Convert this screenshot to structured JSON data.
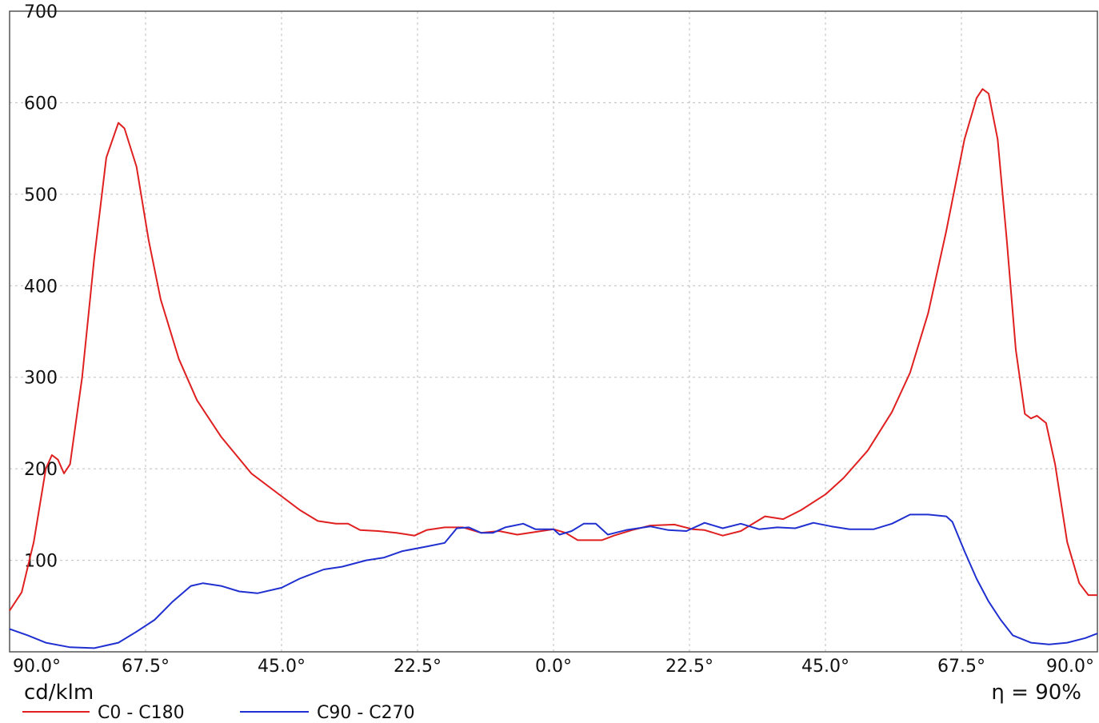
{
  "chart_data": {
    "type": "line",
    "unit_label": "cd/klm",
    "efficiency_label": "η = 90%",
    "ylim": [
      0,
      700
    ],
    "yticks": [
      100,
      200,
      300,
      400,
      500,
      600,
      700
    ],
    "xlim": [
      -90,
      90
    ],
    "xticks": [
      {
        "value": -90,
        "label": "90.0°"
      },
      {
        "value": -67.5,
        "label": "67.5°"
      },
      {
        "value": -45,
        "label": "45.0°"
      },
      {
        "value": -22.5,
        "label": "22.5°"
      },
      {
        "value": 0,
        "label": "0.0°"
      },
      {
        "value": 22.5,
        "label": "22.5°"
      },
      {
        "value": 45,
        "label": "45.0°"
      },
      {
        "value": 67.5,
        "label": "67.5°"
      },
      {
        "value": 90,
        "label": "90.0°"
      }
    ],
    "grid": true,
    "legend_position": "bottom-left",
    "series": [
      {
        "name": "C0 - C180",
        "color": "#e02020",
        "points": [
          [
            -90,
            45
          ],
          [
            -88,
            65
          ],
          [
            -86,
            120
          ],
          [
            -84,
            200
          ],
          [
            -83,
            215
          ],
          [
            -82,
            210
          ],
          [
            -81,
            195
          ],
          [
            -80,
            205
          ],
          [
            -78,
            300
          ],
          [
            -76,
            430
          ],
          [
            -74,
            540
          ],
          [
            -72,
            578
          ],
          [
            -71,
            572
          ],
          [
            -69,
            530
          ],
          [
            -67,
            450
          ],
          [
            -65,
            385
          ],
          [
            -62,
            320
          ],
          [
            -59,
            275
          ],
          [
            -55,
            235
          ],
          [
            -50,
            195
          ],
          [
            -45,
            170
          ],
          [
            -42,
            155
          ],
          [
            -39,
            143
          ],
          [
            -36,
            140
          ],
          [
            -34,
            140
          ],
          [
            -32,
            133
          ],
          [
            -29,
            132
          ],
          [
            -26,
            130
          ],
          [
            -23,
            127
          ],
          [
            -21,
            133
          ],
          [
            -18,
            136
          ],
          [
            -15,
            136
          ],
          [
            -12,
            130
          ],
          [
            -9,
            132
          ],
          [
            -6,
            128
          ],
          [
            -3,
            131
          ],
          [
            0,
            134
          ],
          [
            2,
            130
          ],
          [
            4,
            122
          ],
          [
            8,
            122
          ],
          [
            10,
            127
          ],
          [
            13,
            133
          ],
          [
            16,
            138
          ],
          [
            20,
            139
          ],
          [
            23,
            134
          ],
          [
            25,
            133
          ],
          [
            28,
            127
          ],
          [
            31,
            132
          ],
          [
            35,
            148
          ],
          [
            38,
            145
          ],
          [
            41,
            155
          ],
          [
            45,
            172
          ],
          [
            48,
            190
          ],
          [
            52,
            220
          ],
          [
            56,
            262
          ],
          [
            59,
            305
          ],
          [
            62,
            370
          ],
          [
            65,
            460
          ],
          [
            68,
            560
          ],
          [
            70,
            605
          ],
          [
            71,
            615
          ],
          [
            72,
            610
          ],
          [
            73.5,
            560
          ],
          [
            75,
            450
          ],
          [
            76.5,
            330
          ],
          [
            78,
            260
          ],
          [
            79,
            255
          ],
          [
            80,
            258
          ],
          [
            81.5,
            250
          ],
          [
            83,
            205
          ],
          [
            85,
            120
          ],
          [
            87,
            75
          ],
          [
            88.5,
            62
          ],
          [
            90,
            62
          ]
        ]
      },
      {
        "name": "C90 - C270",
        "color": "#2030d0",
        "points": [
          [
            -90,
            25
          ],
          [
            -87,
            18
          ],
          [
            -84,
            10
          ],
          [
            -80,
            5
          ],
          [
            -76,
            4
          ],
          [
            -72,
            10
          ],
          [
            -69,
            22
          ],
          [
            -66,
            35
          ],
          [
            -63,
            55
          ],
          [
            -60,
            72
          ],
          [
            -58,
            75
          ],
          [
            -55,
            72
          ],
          [
            -52,
            66
          ],
          [
            -49,
            64
          ],
          [
            -45,
            70
          ],
          [
            -42,
            80
          ],
          [
            -38,
            90
          ],
          [
            -35,
            93
          ],
          [
            -31,
            100
          ],
          [
            -28,
            103
          ],
          [
            -25,
            110
          ],
          [
            -21,
            115
          ],
          [
            -18,
            119
          ],
          [
            -16,
            135
          ],
          [
            -14,
            136
          ],
          [
            -12,
            130
          ],
          [
            -10,
            130
          ],
          [
            -8,
            136
          ],
          [
            -5,
            140
          ],
          [
            -3,
            134
          ],
          [
            0,
            134
          ],
          [
            1,
            128
          ],
          [
            3,
            132
          ],
          [
            5,
            140
          ],
          [
            7,
            140
          ],
          [
            9,
            128
          ],
          [
            12,
            133
          ],
          [
            16,
            137
          ],
          [
            19,
            133
          ],
          [
            22,
            132
          ],
          [
            25,
            141
          ],
          [
            28,
            135
          ],
          [
            31,
            140
          ],
          [
            34,
            134
          ],
          [
            37,
            136
          ],
          [
            40,
            135
          ],
          [
            43,
            141
          ],
          [
            46,
            137
          ],
          [
            49,
            134
          ],
          [
            53,
            134
          ],
          [
            56,
            140
          ],
          [
            59,
            150
          ],
          [
            62,
            150
          ],
          [
            65,
            148
          ],
          [
            66,
            142
          ],
          [
            68,
            110
          ],
          [
            70,
            80
          ],
          [
            72,
            55
          ],
          [
            74,
            35
          ],
          [
            76,
            18
          ],
          [
            79,
            10
          ],
          [
            82,
            8
          ],
          [
            85,
            10
          ],
          [
            88,
            15
          ],
          [
            90,
            20
          ]
        ]
      }
    ]
  }
}
